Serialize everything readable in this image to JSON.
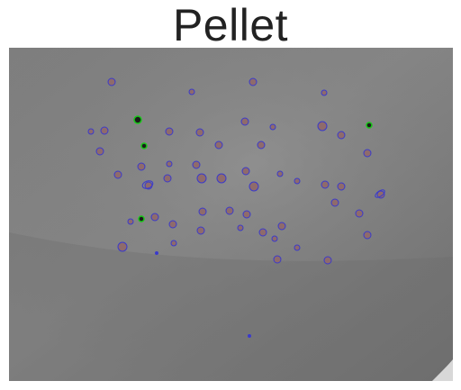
{
  "title": "Pellet",
  "image": {
    "subject": "petri-dish-colonies-photo",
    "colors": {
      "plate_light": "#8c8c8c",
      "plate_dark": "#6b6b6b",
      "colony_fill": "#8f6b6b",
      "outline_blue": "#3a3acc",
      "outline_green": "#18c818",
      "dark_core": "#1a1a1a"
    }
  }
}
